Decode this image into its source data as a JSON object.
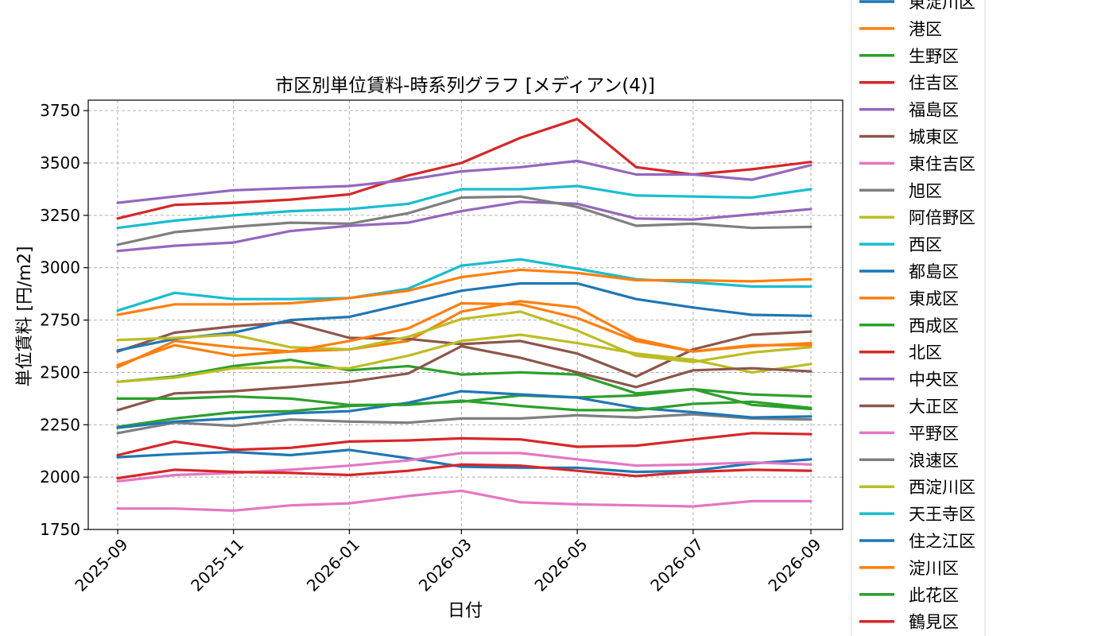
{
  "chart_data": {
    "type": "line",
    "title": "市区別単位賃料-時系列グラフ [メディアン(4)]",
    "xlabel": "日付",
    "ylabel": "単位賃料 [円/m2]",
    "ylim": [
      1750,
      3800
    ],
    "yticks": [
      1750,
      2000,
      2250,
      2500,
      2750,
      3000,
      3250,
      3500,
      3750
    ],
    "xticks": [
      "2025-09",
      "2025-11",
      "2026-01",
      "2026-03",
      "2026-05",
      "2026-07",
      "2026-09"
    ],
    "x": [
      "2025-09-01",
      "2025-10-01",
      "2025-11-01",
      "2025-12-01",
      "2026-01-01",
      "2026-02-01",
      "2026-03-01",
      "2026-04-01",
      "2026-05-01",
      "2026-06-01",
      "2026-07-01",
      "2026-08-01",
      "2026-09-01"
    ],
    "grid": true,
    "legend_position": "right",
    "series": [
      {
        "name": "東淀川区",
        "color": "#1f77b4",
        "values": [
          2095,
          2110,
          2120,
          2105,
          2130,
          2090,
          2050,
          2045,
          2045,
          2025,
          2030,
          2065,
          2085
        ]
      },
      {
        "name": "港区",
        "color": "#ff7f0e",
        "values": [
          2525,
          2650,
          2620,
          2600,
          2610,
          2650,
          2790,
          2840,
          2810,
          2660,
          2600,
          2625,
          2640
        ]
      },
      {
        "name": "生野区",
        "color": "#2ca02c",
        "values": [
          2455,
          2480,
          2530,
          2560,
          2510,
          2530,
          2490,
          2500,
          2490,
          2400,
          2420,
          2395,
          2385
        ]
      },
      {
        "name": "住吉区",
        "color": "#d62728",
        "values": [
          3235,
          3300,
          3310,
          3325,
          3350,
          3440,
          3500,
          3620,
          3710,
          3480,
          3445,
          3470,
          3505
        ]
      },
      {
        "name": "福島区",
        "color": "#9467bd",
        "values": [
          3080,
          3105,
          3120,
          3175,
          3200,
          3215,
          3270,
          3315,
          3305,
          3235,
          3230,
          3255,
          3280
        ]
      },
      {
        "name": "城東区",
        "color": "#8c564b",
        "values": [
          2600,
          2690,
          2720,
          2740,
          2665,
          2660,
          2635,
          2650,
          2590,
          2480,
          2610,
          2680,
          2695
        ]
      },
      {
        "name": "東住吉区",
        "color": "#e377c2",
        "values": [
          1980,
          2010,
          2020,
          2035,
          2055,
          2080,
          2115,
          2115,
          2085,
          2055,
          2060,
          2070,
          2060
        ]
      },
      {
        "name": "旭区",
        "color": "#7f7f7f",
        "values": [
          3110,
          3170,
          3195,
          3215,
          3210,
          3260,
          3335,
          3340,
          3290,
          3200,
          3210,
          3190,
          3195
        ]
      },
      {
        "name": "阿倍野区",
        "color": "#bcbd22",
        "values": [
          2455,
          2475,
          2520,
          2525,
          2520,
          2580,
          2650,
          2680,
          2640,
          2590,
          2560,
          2500,
          2540
        ]
      },
      {
        "name": "西区",
        "color": "#17becf",
        "values": [
          2795,
          2880,
          2850,
          2850,
          2855,
          2900,
          3010,
          3040,
          2995,
          2945,
          2930,
          2910,
          2910
        ]
      },
      {
        "name": "都島区",
        "color": "#1f77b4",
        "values": [
          2605,
          2660,
          2690,
          2750,
          2765,
          2830,
          2890,
          2925,
          2925,
          2850,
          2810,
          2775,
          2770
        ]
      },
      {
        "name": "東成区",
        "color": "#ff7f0e",
        "values": [
          2775,
          2825,
          2825,
          2830,
          2855,
          2890,
          2955,
          2990,
          2975,
          2940,
          2940,
          2935,
          2945
        ]
      },
      {
        "name": "西成区",
        "color": "#2ca02c",
        "values": [
          2240,
          2280,
          2310,
          2315,
          2340,
          2350,
          2360,
          2390,
          2380,
          2390,
          2420,
          2345,
          2325
        ]
      },
      {
        "name": "北区",
        "color": "#d62728",
        "values": [
          2105,
          2170,
          2130,
          2140,
          2170,
          2175,
          2185,
          2180,
          2145,
          2150,
          2180,
          2210,
          2205
        ]
      },
      {
        "name": "中央区",
        "color": "#9467bd",
        "values": [
          3310,
          3340,
          3370,
          3380,
          3390,
          3420,
          3460,
          3480,
          3510,
          3445,
          3445,
          3420,
          3490
        ]
      },
      {
        "name": "大正区",
        "color": "#8c564b",
        "values": [
          2320,
          2400,
          2410,
          2430,
          2455,
          2495,
          2625,
          2570,
          2500,
          2430,
          2510,
          2520,
          2505
        ]
      },
      {
        "name": "平野区",
        "color": "#e377c2",
        "values": [
          1850,
          1850,
          1840,
          1865,
          1875,
          1910,
          1935,
          1880,
          1870,
          1865,
          1860,
          1885,
          1885
        ]
      },
      {
        "name": "浪速区",
        "color": "#7f7f7f",
        "values": [
          2210,
          2260,
          2245,
          2275,
          2265,
          2260,
          2280,
          2280,
          2295,
          2285,
          2300,
          2280,
          2275
        ]
      },
      {
        "name": "西淀川区",
        "color": "#bcbd22",
        "values": [
          2655,
          2665,
          2680,
          2620,
          2610,
          2670,
          2755,
          2790,
          2700,
          2580,
          2550,
          2595,
          2620
        ]
      },
      {
        "name": "天王寺区",
        "color": "#17becf",
        "values": [
          3190,
          3225,
          3250,
          3270,
          3280,
          3305,
          3375,
          3375,
          3390,
          3345,
          3340,
          3335,
          3375
        ]
      },
      {
        "name": "住之江区",
        "color": "#1f77b4",
        "values": [
          2235,
          2265,
          2280,
          2305,
          2315,
          2355,
          2410,
          2395,
          2380,
          2330,
          2310,
          2285,
          2290
        ]
      },
      {
        "name": "淀川区",
        "color": "#ff7f0e",
        "values": [
          2535,
          2630,
          2580,
          2600,
          2650,
          2710,
          2830,
          2825,
          2760,
          2650,
          2600,
          2630,
          2630
        ]
      },
      {
        "name": "此花区",
        "color": "#2ca02c",
        "values": [
          2375,
          2375,
          2385,
          2375,
          2345,
          2345,
          2365,
          2340,
          2320,
          2320,
          2350,
          2360,
          2330
        ]
      },
      {
        "name": "鶴見区",
        "color": "#d62728",
        "values": [
          1995,
          2035,
          2025,
          2020,
          2010,
          2030,
          2060,
          2055,
          2030,
          2005,
          2025,
          2035,
          2030
        ]
      }
    ]
  }
}
